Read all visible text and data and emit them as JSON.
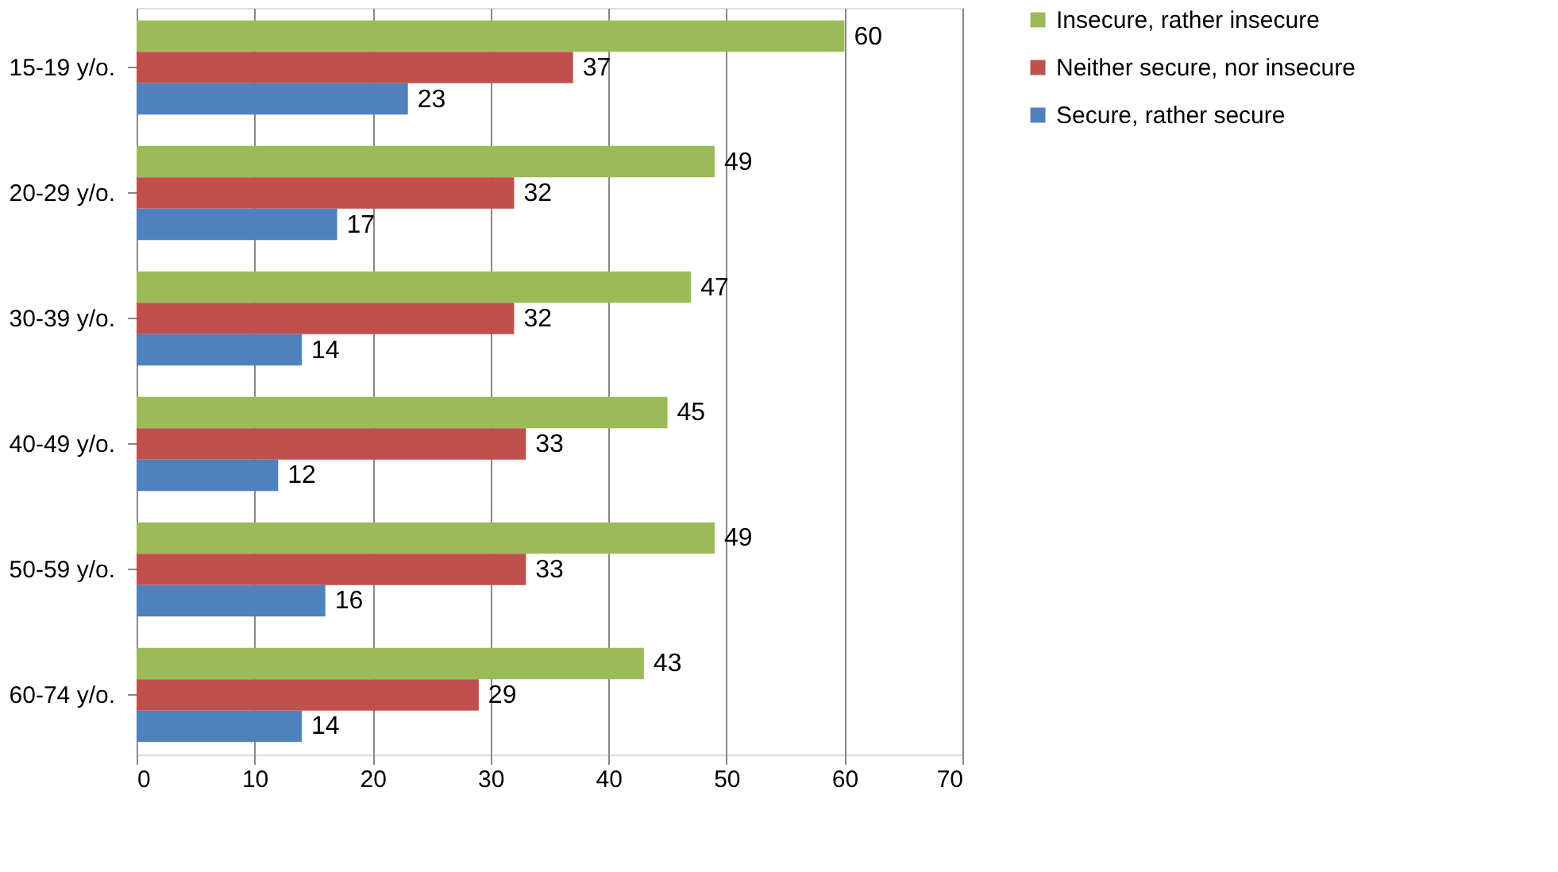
{
  "chart_data": {
    "type": "bar",
    "orientation": "horizontal",
    "categories": [
      "15-19 y/o.",
      "20-29 y/o.",
      "30-39 y/o.",
      "40-49 y/o.",
      "50-59 y/o.",
      "60-74 y/o."
    ],
    "series": [
      {
        "name": "Insecure, rather insecure",
        "color": "#9bbb59",
        "values": [
          60,
          49,
          47,
          45,
          49,
          43
        ]
      },
      {
        "name": "Neither secure, nor insecure",
        "color": "#c0504d",
        "values": [
          37,
          32,
          32,
          33,
          33,
          29
        ]
      },
      {
        "name": "Secure, rather secure",
        "color": "#4f81bd",
        "values": [
          23,
          17,
          14,
          12,
          16,
          14
        ]
      }
    ],
    "xlim": [
      0,
      70
    ],
    "xticks": [
      0,
      10,
      20,
      30,
      40,
      50,
      60,
      70
    ],
    "grid": "x",
    "legend": "right",
    "data_labels": true
  }
}
